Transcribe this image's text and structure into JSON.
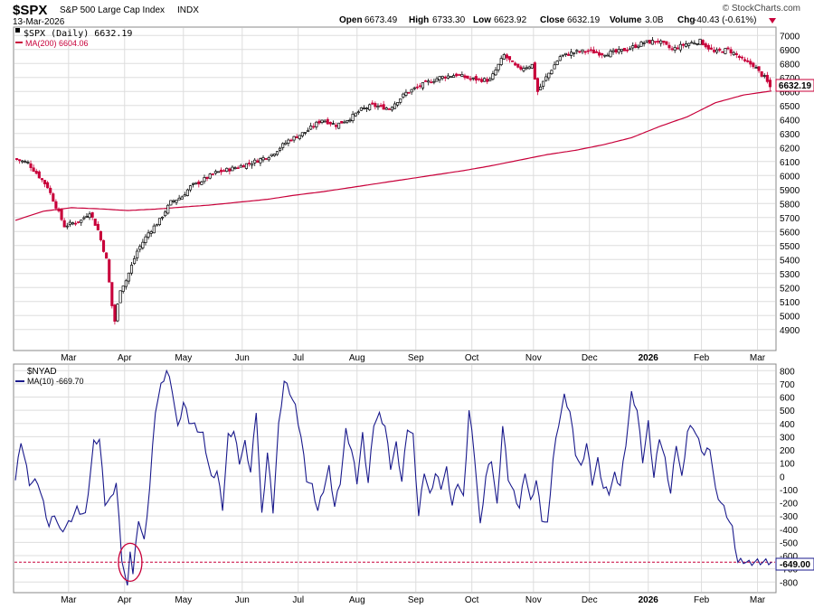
{
  "header": {
    "symbol": "$SPX",
    "name": "S&P 500 Large Cap Index",
    "exchange": "INDX",
    "date": "13-Mar-2026",
    "copyright": "© StockCharts.com",
    "open_label": "Open",
    "open": "6673.49",
    "high_label": "High",
    "high": "6733.30",
    "low_label": "Low",
    "low": "6623.92",
    "close_label": "Close",
    "close": "6632.19",
    "volume_label": "Volume",
    "volume": "3.0B",
    "chg_label": "Chg",
    "chg": "-40.43 (-0.61%)"
  },
  "colors": {
    "up": "#000000",
    "down": "#c8003a",
    "ma": "#c8003a",
    "breadth": "#1a1a8c",
    "grid": "#dddddd",
    "ref": "#c8003a",
    "badge_red": "#c8003a",
    "badge_blue": "#1a1a8c"
  },
  "chart_data": [
    {
      "type": "candlestick",
      "title": "$SPX (Daily) 6632.19",
      "legend": [
        "$SPX (Daily) 6632.19",
        "MA(200) 6604.06"
      ],
      "last_value_label": "6632.19",
      "ylim": [
        4750,
        7060
      ],
      "y_ticks": [
        4900,
        5000,
        5100,
        5200,
        5300,
        5400,
        5500,
        5600,
        5700,
        5800,
        5900,
        6000,
        6100,
        6200,
        6300,
        6400,
        6500,
        6600,
        6700,
        6800,
        6900,
        7000
      ],
      "x_ticks": [
        "Mar",
        "Apr",
        "May",
        "Jun",
        "Jul",
        "Aug",
        "Sep",
        "Oct",
        "Nov",
        "Dec",
        "2026",
        "Feb",
        "Mar"
      ],
      "x_tick_days": [
        19,
        39,
        60,
        81,
        101,
        122,
        143,
        163,
        185,
        205,
        226,
        245,
        265
      ],
      "n_days": 270,
      "close_anchors": [
        [
          0,
          6120
        ],
        [
          5,
          6090
        ],
        [
          12,
          5920
        ],
        [
          18,
          5640
        ],
        [
          24,
          5680
        ],
        [
          27,
          5740
        ],
        [
          30,
          5610
        ],
        [
          33,
          5400
        ],
        [
          35,
          5070
        ],
        [
          36,
          4960
        ],
        [
          38,
          5190
        ],
        [
          40,
          5250
        ],
        [
          44,
          5460
        ],
        [
          48,
          5590
        ],
        [
          52,
          5680
        ],
        [
          56,
          5810
        ],
        [
          60,
          5850
        ],
        [
          63,
          5920
        ],
        [
          66,
          5950
        ],
        [
          72,
          6020
        ],
        [
          78,
          6050
        ],
        [
          86,
          6100
        ],
        [
          92,
          6150
        ],
        [
          98,
          6250
        ],
        [
          104,
          6310
        ],
        [
          110,
          6400
        ],
        [
          115,
          6360
        ],
        [
          120,
          6410
        ],
        [
          124,
          6470
        ],
        [
          128,
          6500
        ],
        [
          134,
          6480
        ],
        [
          140,
          6590
        ],
        [
          146,
          6650
        ],
        [
          152,
          6700
        ],
        [
          158,
          6720
        ],
        [
          163,
          6690
        ],
        [
          170,
          6680
        ],
        [
          175,
          6860
        ],
        [
          180,
          6760
        ],
        [
          185,
          6790
        ],
        [
          187,
          6600
        ],
        [
          190,
          6700
        ],
        [
          195,
          6850
        ],
        [
          200,
          6880
        ],
        [
          205,
          6890
        ],
        [
          210,
          6870
        ],
        [
          215,
          6880
        ],
        [
          220,
          6910
        ],
        [
          225,
          6950
        ],
        [
          230,
          6960
        ],
        [
          235,
          6900
        ],
        [
          240,
          6940
        ],
        [
          245,
          6960
        ],
        [
          250,
          6880
        ],
        [
          255,
          6900
        ],
        [
          258,
          6860
        ],
        [
          261,
          6810
        ],
        [
          264,
          6790
        ],
        [
          266,
          6740
        ],
        [
          268,
          6700
        ],
        [
          270,
          6632
        ]
      ],
      "ma_anchors": [
        [
          0,
          5680
        ],
        [
          10,
          5745
        ],
        [
          20,
          5770
        ],
        [
          30,
          5762
        ],
        [
          40,
          5750
        ],
        [
          50,
          5760
        ],
        [
          60,
          5775
        ],
        [
          70,
          5790
        ],
        [
          80,
          5810
        ],
        [
          90,
          5830
        ],
        [
          100,
          5860
        ],
        [
          110,
          5885
        ],
        [
          120,
          5915
        ],
        [
          130,
          5945
        ],
        [
          140,
          5975
        ],
        [
          150,
          6005
        ],
        [
          160,
          6035
        ],
        [
          170,
          6070
        ],
        [
          180,
          6110
        ],
        [
          190,
          6150
        ],
        [
          200,
          6180
        ],
        [
          210,
          6220
        ],
        [
          220,
          6270
        ],
        [
          230,
          6350
        ],
        [
          240,
          6420
        ],
        [
          250,
          6520
        ],
        [
          260,
          6575
        ],
        [
          270,
          6604
        ]
      ]
    },
    {
      "type": "line",
      "title": "$NYAD",
      "legend": [
        "$NYAD",
        "MA(10) -669.70"
      ],
      "last_value_label": "-649.00",
      "reference_level": -649,
      "ylim": [
        -880,
        850
      ],
      "y_ticks": [
        800,
        700,
        600,
        500,
        400,
        300,
        200,
        100,
        0,
        -100,
        -200,
        -300,
        -400,
        -500,
        -600,
        -700,
        -800
      ],
      "x_ticks": [
        "Mar",
        "Apr",
        "May",
        "Jun",
        "Jul",
        "Aug",
        "Sep",
        "Oct",
        "Nov",
        "Dec",
        "2026",
        "Feb",
        "Mar"
      ],
      "annotation": "circled low near -700 in early April",
      "anchors": [
        [
          0,
          -30
        ],
        [
          2,
          270
        ],
        [
          5,
          -50
        ],
        [
          8,
          -40
        ],
        [
          12,
          -380
        ],
        [
          14,
          -280
        ],
        [
          16,
          -420
        ],
        [
          19,
          -360
        ],
        [
          22,
          -250
        ],
        [
          25,
          -300
        ],
        [
          28,
          250
        ],
        [
          30,
          280
        ],
        [
          32,
          -200
        ],
        [
          34,
          -180
        ],
        [
          36,
          -50
        ],
        [
          38,
          -620
        ],
        [
          40,
          -850
        ],
        [
          41,
          -550
        ],
        [
          42,
          -740
        ],
        [
          44,
          -320
        ],
        [
          46,
          -500
        ],
        [
          48,
          -80
        ],
        [
          50,
          500
        ],
        [
          52,
          680
        ],
        [
          54,
          800
        ],
        [
          56,
          660
        ],
        [
          58,
          360
        ],
        [
          60,
          560
        ],
        [
          62,
          420
        ],
        [
          64,
          380
        ],
        [
          67,
          310
        ],
        [
          70,
          -20
        ],
        [
          72,
          40
        ],
        [
          74,
          -240
        ],
        [
          76,
          300
        ],
        [
          78,
          340
        ],
        [
          80,
          110
        ],
        [
          82,
          250
        ],
        [
          84,
          30
        ],
        [
          86,
          500
        ],
        [
          88,
          -300
        ],
        [
          90,
          180
        ],
        [
          92,
          -260
        ],
        [
          94,
          380
        ],
        [
          96,
          720
        ],
        [
          98,
          640
        ],
        [
          100,
          520
        ],
        [
          102,
          300
        ],
        [
          104,
          -20
        ],
        [
          106,
          -80
        ],
        [
          108,
          -260
        ],
        [
          110,
          -100
        ],
        [
          112,
          60
        ],
        [
          114,
          -230
        ],
        [
          116,
          -40
        ],
        [
          118,
          340
        ],
        [
          120,
          200
        ],
        [
          122,
          -40
        ],
        [
          124,
          310
        ],
        [
          126,
          -50
        ],
        [
          128,
          400
        ],
        [
          130,
          460
        ],
        [
          132,
          380
        ],
        [
          134,
          70
        ],
        [
          136,
          240
        ],
        [
          138,
          -40
        ],
        [
          140,
          370
        ],
        [
          142,
          300
        ],
        [
          144,
          -300
        ],
        [
          146,
          40
        ],
        [
          148,
          -150
        ],
        [
          150,
          20
        ],
        [
          152,
          -80
        ],
        [
          154,
          50
        ],
        [
          156,
          -220
        ],
        [
          158,
          -40
        ],
        [
          160,
          -170
        ],
        [
          162,
          500
        ],
        [
          164,
          150
        ],
        [
          166,
          -380
        ],
        [
          168,
          0
        ],
        [
          170,
          130
        ],
        [
          172,
          -230
        ],
        [
          174,
          380
        ],
        [
          176,
          -10
        ],
        [
          178,
          -130
        ],
        [
          180,
          -240
        ],
        [
          182,
          40
        ],
        [
          184,
          -200
        ],
        [
          186,
          -30
        ],
        [
          188,
          -320
        ],
        [
          190,
          -370
        ],
        [
          192,
          130
        ],
        [
          194,
          400
        ],
        [
          196,
          600
        ],
        [
          198,
          490
        ],
        [
          200,
          180
        ],
        [
          202,
          60
        ],
        [
          204,
          250
        ],
        [
          206,
          -50
        ],
        [
          208,
          120
        ],
        [
          210,
          -90
        ],
        [
          212,
          -120
        ],
        [
          214,
          10
        ],
        [
          216,
          -70
        ],
        [
          218,
          250
        ],
        [
          220,
          620
        ],
        [
          222,
          500
        ],
        [
          224,
          120
        ],
        [
          226,
          400
        ],
        [
          228,
          -10
        ],
        [
          230,
          300
        ],
        [
          232,
          120
        ],
        [
          234,
          -130
        ],
        [
          236,
          250
        ],
        [
          238,
          -20
        ],
        [
          240,
          340
        ],
        [
          242,
          380
        ],
        [
          244,
          260
        ],
        [
          246,
          160
        ],
        [
          248,
          220
        ],
        [
          250,
          -110
        ],
        [
          252,
          -200
        ],
        [
          254,
          -290
        ],
        [
          256,
          -400
        ],
        [
          258,
          -650
        ],
        [
          260,
          -640
        ],
        [
          262,
          -660
        ],
        [
          264,
          -649
        ],
        [
          270,
          -649
        ]
      ]
    }
  ]
}
